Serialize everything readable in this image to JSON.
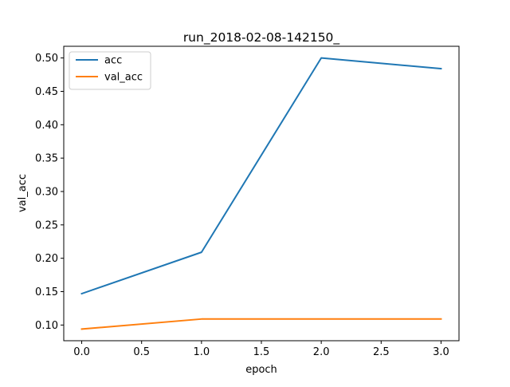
{
  "chart_data": {
    "type": "line",
    "title": "run_2018-02-08-142150_",
    "xlabel": "epoch",
    "ylabel": "val_acc",
    "x": [
      0,
      1,
      2,
      3
    ],
    "xlim": [
      -0.15,
      3.15
    ],
    "ylim": [
      0.0765,
      0.5175
    ],
    "xticks": [
      0.0,
      0.5,
      1.0,
      1.5,
      2.0,
      2.5,
      3.0
    ],
    "xtick_labels": [
      "0.0",
      "0.5",
      "1.0",
      "1.5",
      "2.0",
      "2.5",
      "3.0"
    ],
    "yticks": [
      0.1,
      0.15,
      0.2,
      0.25,
      0.3,
      0.35,
      0.4,
      0.45,
      0.5
    ],
    "ytick_labels": [
      "0.10",
      "0.15",
      "0.20",
      "0.25",
      "0.30",
      "0.35",
      "0.40",
      "0.45",
      "0.50"
    ],
    "grid": false,
    "legend_position": "top-left",
    "series": [
      {
        "name": "acc",
        "values": [
          0.147,
          0.209,
          0.5,
          0.484
        ],
        "color": "#1f77b4"
      },
      {
        "name": "val_acc",
        "values": [
          0.094,
          0.109,
          0.109,
          0.109
        ],
        "color": "#ff7f0e"
      }
    ]
  }
}
